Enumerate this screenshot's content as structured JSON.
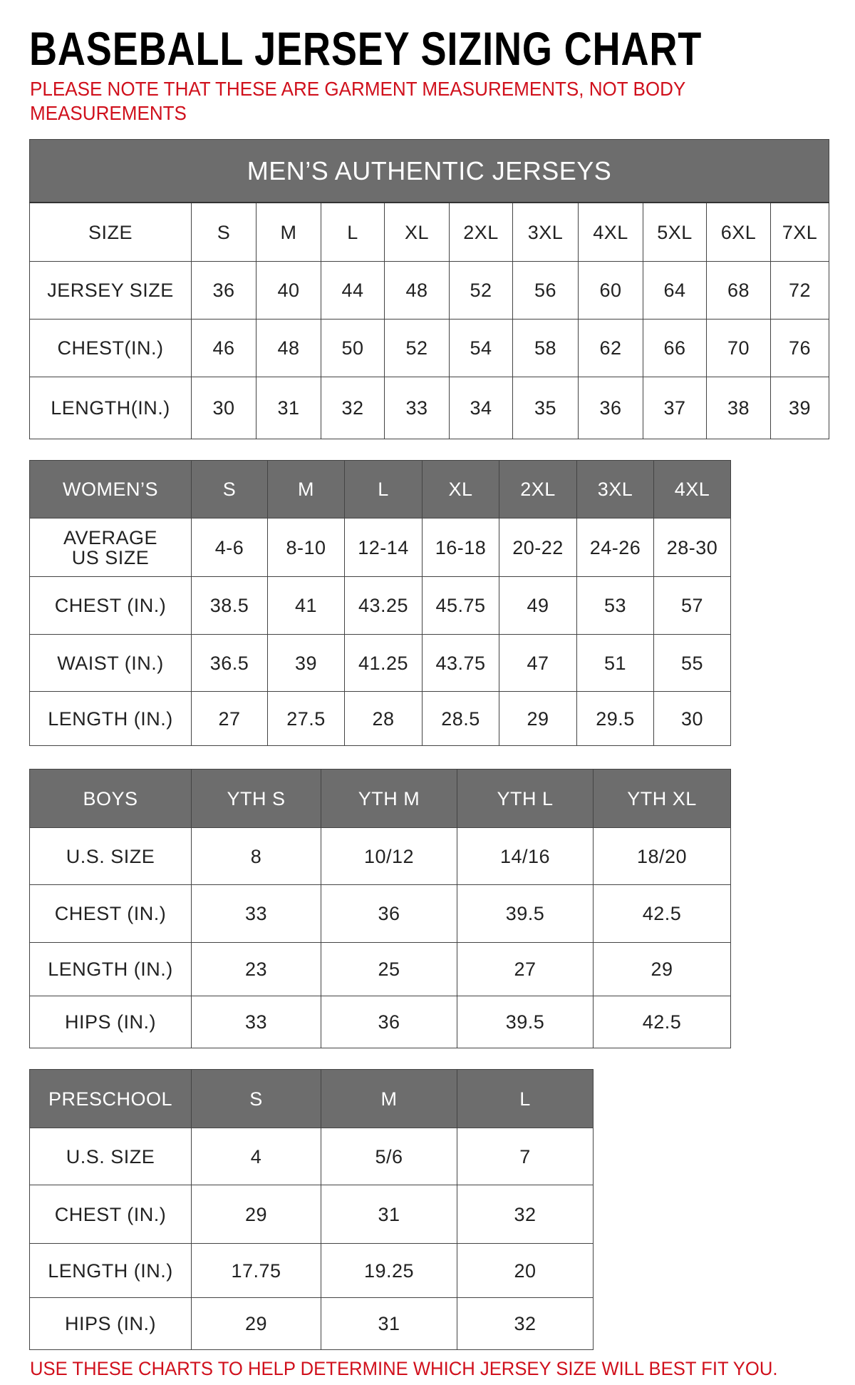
{
  "title": "BASEBALL JERSEY SIZING CHART",
  "note": "PLEASE NOTE THAT THESE ARE GARMENT MEASUREMENTS, NOT BODY MEASUREMENTS",
  "footer": "USE THESE CHARTS TO HELP DETERMINE WHICH JERSEY SIZE WILL BEST FIT YOU.",
  "colors": {
    "header_bg": "#6d6d6d",
    "accent_red": "#d0101c"
  },
  "tables": [
    {
      "id": "mens",
      "caption": "MEN’S AUTHENTIC JERSEYS",
      "header": [
        "SIZE",
        "S",
        "M",
        "L",
        "XL",
        "2XL",
        "3XL",
        "4XL",
        "5XL",
        "6XL",
        "7XL"
      ],
      "header_style": "plain",
      "rows": [
        [
          "JERSEY SIZE",
          "36",
          "40",
          "44",
          "48",
          "52",
          "56",
          "60",
          "64",
          "68",
          "72"
        ],
        [
          "CHEST(IN.)",
          "46",
          "48",
          "50",
          "52",
          "54",
          "58",
          "62",
          "66",
          "70",
          "76"
        ],
        [
          "LENGTH(IN.)",
          "30",
          "31",
          "32",
          "33",
          "34",
          "35",
          "36",
          "37",
          "38",
          "39"
        ]
      ]
    },
    {
      "id": "womens",
      "header": [
        "WOMEN’S",
        "S",
        "M",
        "L",
        "XL",
        "2XL",
        "3XL",
        "4XL"
      ],
      "header_style": "gray",
      "rows": [
        [
          "AVERAGE US SIZE",
          "4-6",
          "8-10",
          "12-14",
          "16-18",
          "20-22",
          "24-26",
          "28-30"
        ],
        [
          "CHEST (IN.)",
          "38.5",
          "41",
          "43.25",
          "45.75",
          "49",
          "53",
          "57"
        ],
        [
          "WAIST (IN.)",
          "36.5",
          "39",
          "41.25",
          "43.75",
          "47",
          "51",
          "55"
        ],
        [
          "LENGTH (IN.)",
          "27",
          "27.5",
          "28",
          "28.5",
          "29",
          "29.5",
          "30"
        ]
      ]
    },
    {
      "id": "boys",
      "header": [
        "BOYS",
        "YTH S",
        "YTH M",
        "YTH L",
        "YTH XL"
      ],
      "header_style": "gray",
      "rows": [
        [
          "U.S. SIZE",
          "8",
          "10/12",
          "14/16",
          "18/20"
        ],
        [
          "CHEST (IN.)",
          "33",
          "36",
          "39.5",
          "42.5"
        ],
        [
          "LENGTH (IN.)",
          "23",
          "25",
          "27",
          "29"
        ],
        [
          "HIPS (IN.)",
          "33",
          "36",
          "39.5",
          "42.5"
        ]
      ]
    },
    {
      "id": "preschool",
      "header": [
        "PRESCHOOL",
        "S",
        "M",
        "L"
      ],
      "header_style": "gray",
      "rows": [
        [
          "U.S. SIZE",
          "4",
          "5/6",
          "7"
        ],
        [
          "CHEST (IN.)",
          "29",
          "31",
          "32"
        ],
        [
          "LENGTH (IN.)",
          "17.75",
          "19.25",
          "20"
        ],
        [
          "HIPS (IN.)",
          "29",
          "31",
          "32"
        ]
      ]
    }
  ]
}
